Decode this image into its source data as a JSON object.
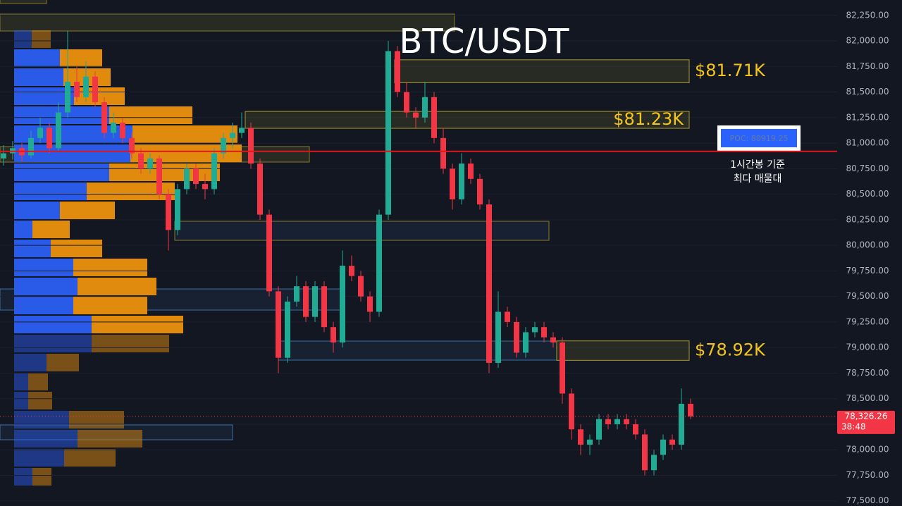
{
  "chart_data": {
    "type": "candlestick",
    "title": "BTC/USDT",
    "ylim": [
      77450,
      82400
    ],
    "yticks": [
      {
        "value": 77500,
        "label": "77,500.00"
      },
      {
        "value": 77750,
        "label": "77,750.00"
      },
      {
        "value": 78000,
        "label": "78,000.00"
      },
      {
        "value": 78250,
        "label": "78,250.00"
      },
      {
        "value": 78500,
        "label": "78,500.00"
      },
      {
        "value": 78750,
        "label": "78,750.00"
      },
      {
        "value": 79000,
        "label": "79,000.00"
      },
      {
        "value": 79250,
        "label": "79,250.00"
      },
      {
        "value": 79500,
        "label": "79,500.00"
      },
      {
        "value": 79750,
        "label": "79,750.00"
      },
      {
        "value": 80000,
        "label": "80,000.00"
      },
      {
        "value": 80250,
        "label": "80,250.00"
      },
      {
        "value": 80500,
        "label": "80,500.00"
      },
      {
        "value": 80750,
        "label": "80,750.00"
      },
      {
        "value": 81000,
        "label": "81,000.00"
      },
      {
        "value": 81250,
        "label": "81,250.00"
      },
      {
        "value": 81500,
        "label": "81,500.00"
      },
      {
        "value": 81750,
        "label": "81,750.00"
      },
      {
        "value": 82000,
        "label": "82,000.00"
      },
      {
        "value": 82250,
        "label": "82,250.00"
      }
    ],
    "up_color": "#22ab94",
    "down_color": "#f23645",
    "candles": [
      [
        80850,
        80980,
        80780,
        80900
      ],
      [
        80900,
        81020,
        80840,
        80950
      ],
      [
        80950,
        81000,
        80820,
        80880
      ],
      [
        80880,
        81120,
        80850,
        81050
      ],
      [
        81050,
        81250,
        81000,
        81150
      ],
      [
        81150,
        81200,
        80900,
        80950
      ],
      [
        80950,
        81400,
        80920,
        81300
      ],
      [
        81300,
        82100,
        81250,
        81600
      ],
      [
        81600,
        81750,
        81400,
        81450
      ],
      [
        81450,
        81800,
        81400,
        81650
      ],
      [
        81650,
        81700,
        81350,
        81400
      ],
      [
        81400,
        81450,
        81050,
        81100
      ],
      [
        81100,
        81300,
        81050,
        81200
      ],
      [
        81200,
        81250,
        81000,
        81050
      ],
      [
        81050,
        81100,
        80850,
        80900
      ],
      [
        80900,
        80950,
        80700,
        80750
      ],
      [
        80750,
        80900,
        80700,
        80850
      ],
      [
        80850,
        80880,
        80450,
        80500
      ],
      [
        80500,
        80550,
        79950,
        80150
      ],
      [
        80150,
        80600,
        80100,
        80550
      ],
      [
        80550,
        80800,
        80500,
        80750
      ],
      [
        80750,
        80800,
        80550,
        80600
      ],
      [
        80600,
        80700,
        80450,
        80550
      ],
      [
        80550,
        80950,
        80500,
        80900
      ],
      [
        80900,
        81100,
        80850,
        81050
      ],
      [
        81050,
        81200,
        80950,
        81100
      ],
      [
        81100,
        81300,
        81050,
        81150
      ],
      [
        81150,
        81200,
        80750,
        80800
      ],
      [
        80800,
        80850,
        80250,
        80300
      ],
      [
        80300,
        80350,
        79500,
        79550
      ],
      [
        79550,
        79600,
        78750,
        78900
      ],
      [
        78900,
        79500,
        78850,
        79450
      ],
      [
        79450,
        79700,
        79400,
        79600
      ],
      [
        79600,
        79650,
        79250,
        79300
      ],
      [
        79300,
        79650,
        79250,
        79600
      ],
      [
        79600,
        79650,
        79150,
        79200
      ],
      [
        79200,
        79250,
        78950,
        79050
      ],
      [
        79050,
        79950,
        79000,
        79800
      ],
      [
        79800,
        79900,
        79650,
        79700
      ],
      [
        79700,
        79750,
        79450,
        79500
      ],
      [
        79500,
        79550,
        79250,
        79350
      ],
      [
        79350,
        80350,
        79300,
        80300
      ],
      [
        80300,
        82000,
        80250,
        81900
      ],
      [
        81900,
        81950,
        81450,
        81500
      ],
      [
        81500,
        81600,
        81250,
        81300
      ],
      [
        81300,
        81350,
        81150,
        81250
      ],
      [
        81250,
        81600,
        81200,
        81450
      ],
      [
        81450,
        81500,
        81000,
        81050
      ],
      [
        81050,
        81150,
        80700,
        80750
      ],
      [
        80750,
        80800,
        80350,
        80450
      ],
      [
        80450,
        80900,
        80400,
        80800
      ],
      [
        80800,
        80850,
        80600,
        80650
      ],
      [
        80650,
        80700,
        80350,
        80400
      ],
      [
        80400,
        80450,
        78750,
        78850
      ],
      [
        78850,
        79550,
        78800,
        79350
      ],
      [
        79350,
        79400,
        79200,
        79250
      ],
      [
        79250,
        79300,
        78900,
        78950
      ],
      [
        78950,
        79200,
        78900,
        79150
      ],
      [
        79150,
        79250,
        79100,
        79200
      ],
      [
        79200,
        79250,
        79050,
        79100
      ],
      [
        79100,
        79150,
        79000,
        79050
      ],
      [
        79050,
        79100,
        78450,
        78550
      ],
      [
        78550,
        78600,
        78100,
        78200
      ],
      [
        78200,
        78250,
        77950,
        78050
      ],
      [
        78050,
        78150,
        77950,
        78100
      ],
      [
        78100,
        78350,
        78050,
        78300
      ],
      [
        78300,
        78350,
        78200,
        78250
      ],
      [
        78250,
        78350,
        78200,
        78300
      ],
      [
        78300,
        78350,
        78200,
        78250
      ],
      [
        78250,
        78300,
        78100,
        78150
      ],
      [
        78150,
        78200,
        77750,
        77800
      ],
      [
        77800,
        78000,
        77750,
        77950
      ],
      [
        77950,
        78150,
        77900,
        78100
      ],
      [
        78100,
        78150,
        78000,
        78050
      ],
      [
        78050,
        78600,
        78000,
        78450
      ],
      [
        78450,
        78500,
        78300,
        78326.26
      ]
    ],
    "volume_profile": {
      "buy_color": "#2a5ae8",
      "sell_color": "#e08a0e",
      "buy": [
        25,
        65,
        70,
        85,
        135,
        168,
        165,
        135,
        103,
        65,
        26,
        52,
        84,
        90,
        84,
        110,
        110,
        46,
        20,
        20,
        78,
        90,
        71,
        26
      ],
      "sell": [
        27,
        60,
        67,
        72,
        118,
        149,
        158,
        157,
        125,
        78,
        53,
        73,
        105,
        112,
        105,
        130,
        110,
        46,
        28,
        34,
        78,
        92,
        73,
        27
      ]
    },
    "zones": [
      {
        "label": "$81.71K",
        "range": [
          81590,
          81815
        ]
      },
      {
        "label": "$81.23K",
        "range": [
          81145,
          81310
        ]
      },
      {
        "label": "$78.92K",
        "range": [
          78875,
          79065
        ]
      }
    ],
    "poc": {
      "value": 80919.25,
      "label": "POC: 80919.25",
      "color": "#e0161b"
    },
    "annotation": [
      "1시간봉 기준",
      "최다 매물대"
    ],
    "last_price": {
      "value": 78326.26,
      "label": "78,326.26"
    },
    "countdown": "38:48"
  }
}
